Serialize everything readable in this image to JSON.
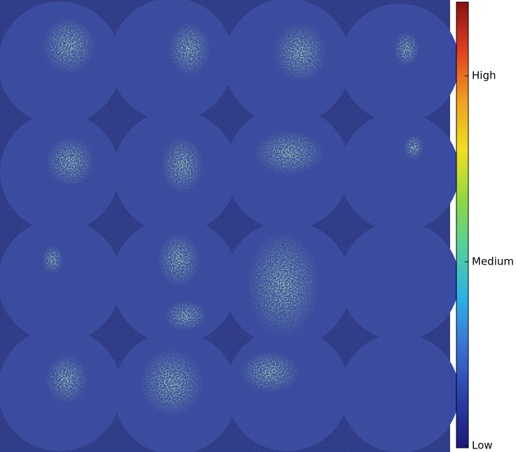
{
  "colorbar": {
    "labels": [
      "High",
      "Medium",
      "Low"
    ],
    "colors": [
      "#1a1a7a",
      "#2b3fa8",
      "#3a6fd0",
      "#2ab0e8",
      "#4fd0a0",
      "#8fd840",
      "#f0e020",
      "#f0a020",
      "#e04020",
      "#8a1010"
    ]
  }
}
